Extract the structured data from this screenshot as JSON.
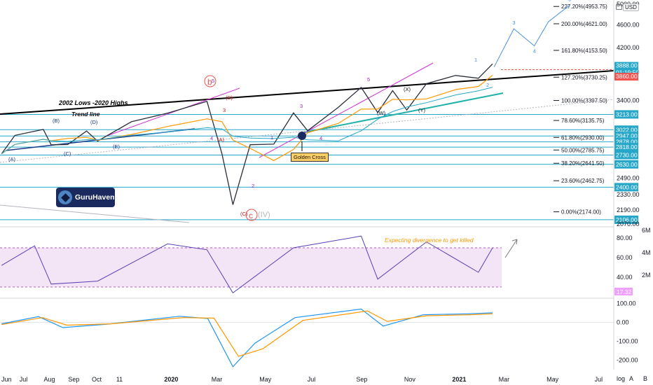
{
  "chart_data": [
    {
      "type": "line",
      "title": "",
      "price_axis": {
        "currency_badge": "USD",
        "ticks": [
          "5000.00",
          "4600.00",
          "4200.00",
          "3800.00",
          "3400.00",
          "2490.00",
          "2330.00",
          "2190.00",
          "2070.00"
        ],
        "tick_values": [
          5000,
          4600,
          4200,
          3800,
          3400,
          2490,
          2330,
          2190,
          2070
        ],
        "ylim": [
          2050,
          5000
        ],
        "scale": "log",
        "current_price": "3888.00",
        "countdown": "01:19:50",
        "price_tag_2": "3860.00",
        "level_tags": [
          "3213.00",
          "3022.00",
          "2947.00",
          "2878.00",
          "2818.00",
          "2730.00",
          "2630.00",
          "2400.00",
          "2106.00"
        ]
      },
      "time_axis": {
        "labels": [
          "Jun",
          "Jul",
          "Aug",
          "Sep",
          "Oct",
          "11",
          "2020",
          "Mar",
          "May",
          "Jul",
          "Sep",
          "Nov",
          "2021",
          "Mar",
          "May",
          "Jul"
        ],
        "bold_labels": [
          "2020",
          "2021"
        ],
        "xlim": [
          "2019-06-01",
          "2021-07-20"
        ]
      },
      "price_series": {
        "name": "",
        "x": [
          "2019-06-03",
          "2019-06-20",
          "2019-07-26",
          "2019-08-05",
          "2019-08-26",
          "2019-09-19",
          "2019-10-03",
          "2019-11-15",
          "2019-12-31",
          "2020-02-19",
          "2020-03-09",
          "2020-03-23",
          "2020-04-14",
          "2020-05-14",
          "2020-06-08",
          "2020-06-26",
          "2020-08-04",
          "2020-09-02",
          "2020-09-23",
          "2020-10-12",
          "2020-10-30",
          "2020-11-24",
          "2020-12-31",
          "2021-01-29",
          "2021-02-16"
        ],
        "values": [
          2744,
          2954,
          3025,
          2844,
          2847,
          3006,
          2887,
          3120,
          3230,
          3386,
          2746,
          2237,
          2846,
          2852,
          3232,
          3009,
          3306,
          3580,
          3237,
          3534,
          3270,
          3635,
          3756,
          3714,
          3934
        ]
      },
      "fibonacci": {
        "levels": [
          {
            "ratio": "227.20%",
            "value": 4953.75
          },
          {
            "ratio": "200.00%",
            "value": 4621.0
          },
          {
            "ratio": "161.80%",
            "value": 4153.5
          },
          {
            "ratio": "127.20%",
            "value": 3730.25
          },
          {
            "ratio": "100.00%",
            "value": 3397.5
          },
          {
            "ratio": "78.60%",
            "value": 3135.75
          },
          {
            "ratio": "61.80%",
            "value": 2930.0
          },
          {
            "ratio": "50.00%",
            "value": 2785.75
          },
          {
            "ratio": "38.20%",
            "value": 2641.5
          },
          {
            "ratio": "23.60%",
            "value": 2462.75
          },
          {
            "ratio": "0.00%",
            "value": 2174.0
          }
        ]
      },
      "projection": {
        "x": [
          "2021-02-18",
          "2021-03-15",
          "2021-04-10",
          "2021-04-28",
          "2021-05-25"
        ],
        "values": [
          3888,
          4530,
          4230,
          4660,
          4980
        ],
        "labels": [
          "3",
          "4",
          "5"
        ]
      },
      "annotations": {
        "trend_title": "2002 Lows -2020 Highs",
        "trend_label": "Trend line",
        "golden_cross": "Golden Cross",
        "wave_b": "b",
        "wave_c": "c",
        "wave_iv": "(IV)",
        "wave_labels": [
          "(A)",
          "(B)",
          "(C)",
          "(D)",
          "(E)",
          "(W)",
          "(X)",
          "(Y)",
          "(A)",
          "(B)",
          "(C)",
          "1",
          "2",
          "3",
          "4",
          "5",
          "1",
          "2",
          "3",
          "4",
          "5"
        ]
      },
      "logo": {
        "text": "GuruHaven",
        "icon": "guruhaven-logo-icon"
      }
    },
    {
      "type": "line",
      "title": "",
      "rsi": {
        "ticks": [
          "80.00",
          "60.00",
          "40.00"
        ],
        "tick_values": [
          80,
          60,
          40
        ],
        "ylim": [
          20,
          90
        ],
        "overbought": 70,
        "oversold": 30,
        "value_tag": "17.32",
        "note": "Expecting divergence to get killed",
        "x": [
          "2019-06-03",
          "2019-07-15",
          "2019-08-05",
          "2019-10-03",
          "2019-12-31",
          "2020-02-19",
          "2020-03-23",
          "2020-06-08",
          "2020-09-02",
          "2020-09-23",
          "2020-11-24",
          "2021-01-29",
          "2021-02-16"
        ],
        "values": [
          52,
          72,
          33,
          36,
          74,
          68,
          24,
          70,
          82,
          38,
          76,
          45,
          70
        ]
      },
      "volume": {
        "ticks": [
          "6M",
          "4M",
          "2M"
        ],
        "tick_values": [
          6,
          4,
          2
        ],
        "unit": "M"
      }
    },
    {
      "type": "bar",
      "title": "",
      "macd": {
        "ticks": [
          "100.00",
          "0.00",
          "-100.00",
          "-200.00"
        ],
        "tick_values": [
          100,
          0,
          -100,
          -200
        ],
        "ylim": [
          -250,
          120
        ],
        "macd_line": {
          "x": [
            "2019-06-03",
            "2019-07-20",
            "2019-08-20",
            "2019-10-15",
            "2020-01-15",
            "2020-02-20",
            "2020-03-23",
            "2020-04-20",
            "2020-06-10",
            "2020-09-02",
            "2020-09-30",
            "2020-11-20",
            "2021-01-15",
            "2021-02-16"
          ],
          "values": [
            -8,
            30,
            -28,
            -10,
            32,
            20,
            -235,
            -110,
            25,
            70,
            -20,
            40,
            45,
            50
          ]
        },
        "signal_line": {
          "x": [
            "2019-06-03",
            "2019-07-25",
            "2019-08-25",
            "2019-10-20",
            "2020-01-20",
            "2020-02-28",
            "2020-03-30",
            "2020-04-30",
            "2020-06-20",
            "2020-09-10",
            "2020-10-05",
            "2020-11-25",
            "2021-01-20",
            "2021-02-16"
          ],
          "values": [
            -12,
            25,
            -15,
            -8,
            25,
            22,
            -180,
            -140,
            10,
            60,
            5,
            35,
            40,
            45
          ]
        }
      }
    }
  ],
  "controls": {
    "log_toggle": "log",
    "auto_toggle": "A",
    "bottom_right": "B"
  }
}
